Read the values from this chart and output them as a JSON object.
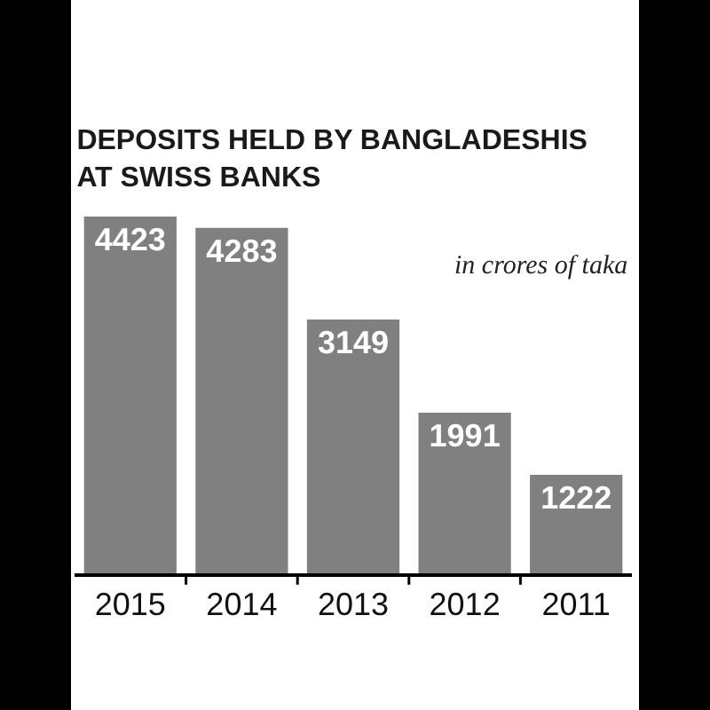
{
  "chart_data": {
    "type": "bar",
    "title": "DEPOSITS HELD BY BANGLADESHIS\nAT SWISS BANKS",
    "subtitle": "in crores of taka",
    "categories": [
      "2015",
      "2014",
      "2013",
      "2012",
      "2011"
    ],
    "values": [
      4423,
      4283,
      3149,
      1991,
      1222
    ],
    "color": "#808080",
    "data_labels": true,
    "legend": false,
    "tick_labels": "x"
  }
}
